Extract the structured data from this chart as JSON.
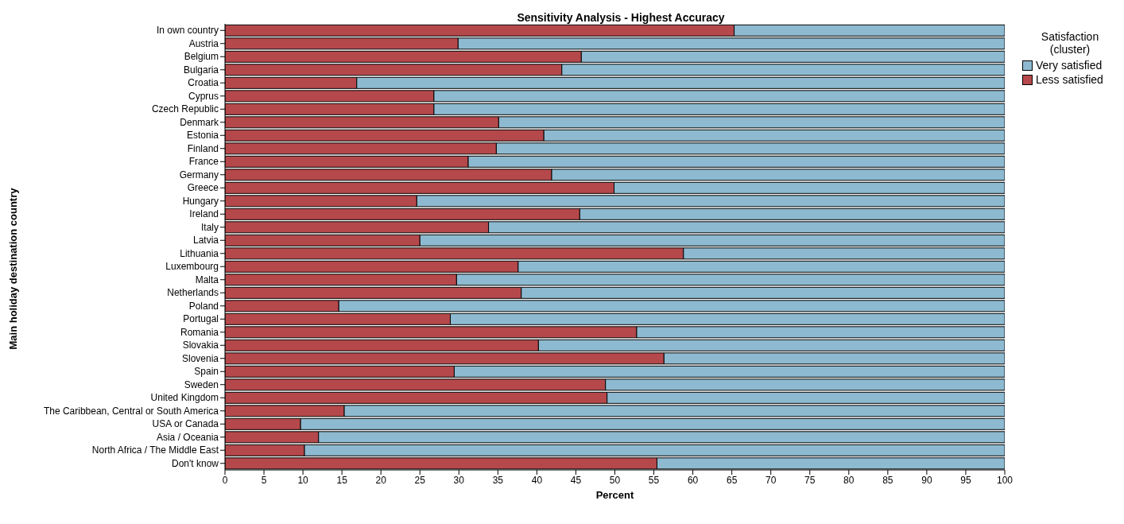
{
  "chart_data": {
    "type": "bar",
    "orientation": "horizontal",
    "stacked": true,
    "title": "Sensitivity Analysis - Highest Accuracy",
    "xlabel": "Percent",
    "ylabel": "Main holiday destination country",
    "legend_title": "Satisfaction\n(cluster)",
    "legend": "top right",
    "grid": false,
    "categories": [
      "In own country",
      "Austria",
      "Belgium",
      "Bulgaria",
      "Croatia",
      "Cyprus",
      "Czech Republic",
      "Denmark",
      "Estonia",
      "Finland",
      "France",
      "Germany",
      "Greece",
      "Hungary",
      "Ireland",
      "Italy",
      "Latvia",
      "Lithuania",
      "Luxembourg",
      "Malta",
      "Netherlands",
      "Poland",
      "Portugal",
      "Romania",
      "Slovakia",
      "Slovenia",
      "Spain",
      "Sweden",
      "United Kingdom",
      "The Caribbean, Central or South America",
      "USA or Canada",
      "Asia / Oceania",
      "North Africa / The Middle East",
      "Don't know"
    ],
    "series": [
      {
        "name": "Less satisfied",
        "color": "#b5484b",
        "values": [
          65.3,
          29.9,
          45.7,
          43.2,
          16.9,
          26.8,
          26.8,
          35.1,
          40.9,
          34.8,
          31.2,
          41.9,
          49.9,
          24.6,
          45.5,
          33.8,
          25.0,
          58.8,
          37.6,
          29.7,
          38.0,
          14.6,
          28.9,
          52.8,
          40.2,
          56.3,
          29.4,
          48.8,
          49.0,
          15.3,
          9.7,
          12.0,
          10.2,
          55.4
        ]
      },
      {
        "name": "Very satisfied",
        "color": "#8dbad0",
        "values": [
          34.7,
          70.1,
          54.3,
          56.8,
          83.1,
          73.2,
          73.2,
          64.9,
          59.1,
          65.2,
          68.8,
          58.1,
          50.1,
          75.4,
          54.5,
          66.2,
          75.0,
          41.2,
          62.4,
          70.3,
          62.0,
          85.4,
          71.1,
          47.2,
          59.8,
          43.7,
          70.6,
          51.2,
          51.0,
          84.7,
          90.3,
          88.0,
          89.8,
          44.6
        ]
      }
    ],
    "xlim": [
      0,
      100
    ],
    "xticks": [
      0,
      5,
      10,
      15,
      20,
      25,
      30,
      35,
      40,
      45,
      50,
      55,
      60,
      65,
      70,
      75,
      80,
      85,
      90,
      95,
      100
    ]
  }
}
